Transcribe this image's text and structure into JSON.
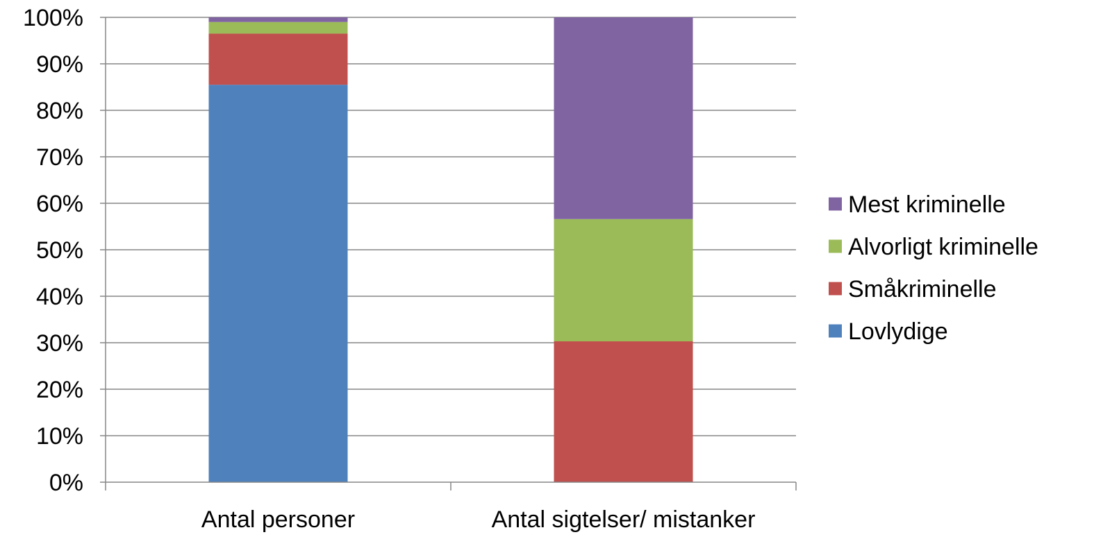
{
  "chart_data": {
    "type": "bar",
    "stacked": true,
    "percent_stacked": true,
    "categories": [
      "Antal personer",
      "Antal sigtelser/ mistanker"
    ],
    "series": [
      {
        "name": "Lovlydige",
        "color": "#4F81BD",
        "values": [
          85.5,
          0
        ]
      },
      {
        "name": "Småkriminelle",
        "color": "#C0504D",
        "values": [
          11,
          30.3
        ]
      },
      {
        "name": "Alvorligt kriminelle",
        "color": "#9BBB59",
        "values": [
          2.5,
          26.3
        ]
      },
      {
        "name": "Mest kriminelle",
        "color": "#8064A2",
        "values": [
          1,
          43.4
        ]
      }
    ],
    "ylim": [
      0,
      100
    ],
    "yticks": [
      "0%",
      "10%",
      "20%",
      "30%",
      "40%",
      "50%",
      "60%",
      "70%",
      "80%",
      "90%",
      "100%"
    ],
    "grid": true,
    "legend_position": "right",
    "legend_order": [
      "Mest kriminelle",
      "Alvorligt kriminelle",
      "Småkriminelle",
      "Lovlydige"
    ]
  }
}
